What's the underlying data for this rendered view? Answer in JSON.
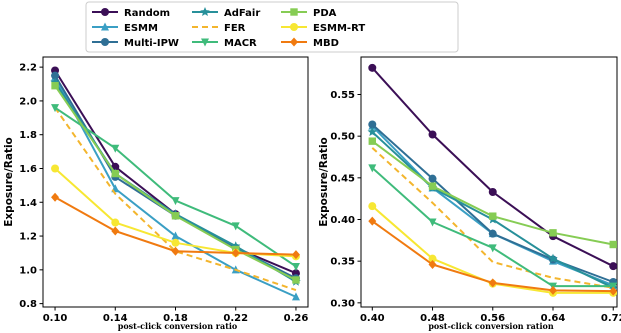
{
  "legend": [
    {
      "name": "Random",
      "color": "#3b0f56",
      "marker": "circle",
      "dash": false
    },
    {
      "name": "ESMM",
      "color": "#3a9fc4",
      "marker": "triangle",
      "dash": false
    },
    {
      "name": "Multi-IPW",
      "color": "#2f6f95",
      "marker": "circle",
      "dash": false
    },
    {
      "name": "AdFair",
      "color": "#27909a",
      "marker": "star",
      "dash": false
    },
    {
      "name": "FER",
      "color": "#f3b52d",
      "marker": "none",
      "dash": true
    },
    {
      "name": "MACR",
      "color": "#3fbb7b",
      "marker": "tri-down",
      "dash": false
    },
    {
      "name": "PDA",
      "color": "#86cc54",
      "marker": "square",
      "dash": false
    },
    {
      "name": "ESMM-RT",
      "color": "#f7e733",
      "marker": "circle",
      "dash": false
    },
    {
      "name": "MBD",
      "color": "#f07a10",
      "marker": "diamond",
      "dash": false
    }
  ],
  "chart_data": [
    {
      "type": "line",
      "xlabel": "post-click conversion ratio",
      "ylabel": "Exposure/Ratio",
      "x": [
        0.1,
        0.14,
        0.18,
        0.22,
        0.26
      ],
      "x_ticks": [
        "0.10",
        "0.14",
        "0.18",
        "0.22",
        "0.26"
      ],
      "xlim": [
        0.092,
        0.268
      ],
      "y_ticks": [
        "0.8",
        "1.0",
        "1.2",
        "1.4",
        "1.6",
        "1.8",
        "2.0",
        "2.2"
      ],
      "ylim": [
        0.78,
        2.26
      ],
      "grid": false,
      "series": [
        {
          "name": "Random",
          "values": [
            2.18,
            1.61,
            1.33,
            1.13,
            0.98
          ]
        },
        {
          "name": "ESMM",
          "values": [
            2.14,
            1.48,
            1.2,
            1.0,
            0.84
          ]
        },
        {
          "name": "Multi-IPW",
          "values": [
            2.15,
            1.55,
            1.32,
            1.13,
            0.95
          ]
        },
        {
          "name": "AdFair",
          "values": [
            2.11,
            1.57,
            1.33,
            1.14,
            0.93
          ]
        },
        {
          "name": "FER",
          "values": [
            1.96,
            1.45,
            1.11,
            1.0,
            0.88
          ]
        },
        {
          "name": "MACR",
          "values": [
            1.96,
            1.72,
            1.41,
            1.26,
            1.02
          ]
        },
        {
          "name": "PDA",
          "values": [
            2.09,
            1.57,
            1.32,
            1.12,
            0.94
          ]
        },
        {
          "name": "ESMM-RT",
          "values": [
            1.6,
            1.28,
            1.16,
            1.1,
            1.08
          ]
        },
        {
          "name": "MBD",
          "values": [
            1.43,
            1.23,
            1.11,
            1.1,
            1.09
          ]
        }
      ]
    },
    {
      "type": "line",
      "xlabel": "post-click conversion ration",
      "ylabel": "Exposure/Ratio",
      "x": [
        0.4,
        0.48,
        0.56,
        0.64,
        0.72
      ],
      "x_ticks": [
        "0.40",
        "0.48",
        "0.56",
        "0.64",
        "0.72"
      ],
      "xlim": [
        0.385,
        0.725
      ],
      "y_ticks": [
        "0.30",
        "0.35",
        "0.40",
        "0.45",
        "0.50",
        "0.55"
      ],
      "ylim": [
        0.295,
        0.595
      ],
      "grid": false,
      "series": [
        {
          "name": "Random",
          "values": [
            0.582,
            0.502,
            0.433,
            0.38,
            0.344
          ]
        },
        {
          "name": "ESMM",
          "values": [
            0.512,
            0.438,
            0.383,
            0.35,
            0.321
          ]
        },
        {
          "name": "Multi-IPW",
          "values": [
            0.514,
            0.449,
            0.383,
            0.352,
            0.325
          ]
        },
        {
          "name": "AdFair",
          "values": [
            0.505,
            0.438,
            0.4,
            0.353,
            0.318
          ]
        },
        {
          "name": "FER",
          "values": [
            0.486,
            0.42,
            0.349,
            0.33,
            0.318
          ]
        },
        {
          "name": "MACR",
          "values": [
            0.462,
            0.397,
            0.366,
            0.32,
            0.32
          ]
        },
        {
          "name": "PDA",
          "values": [
            0.494,
            0.44,
            0.404,
            0.384,
            0.37
          ]
        },
        {
          "name": "ESMM-RT",
          "values": [
            0.416,
            0.353,
            0.323,
            0.312,
            0.312
          ]
        },
        {
          "name": "MBD",
          "values": [
            0.398,
            0.346,
            0.324,
            0.315,
            0.314
          ]
        }
      ]
    }
  ]
}
